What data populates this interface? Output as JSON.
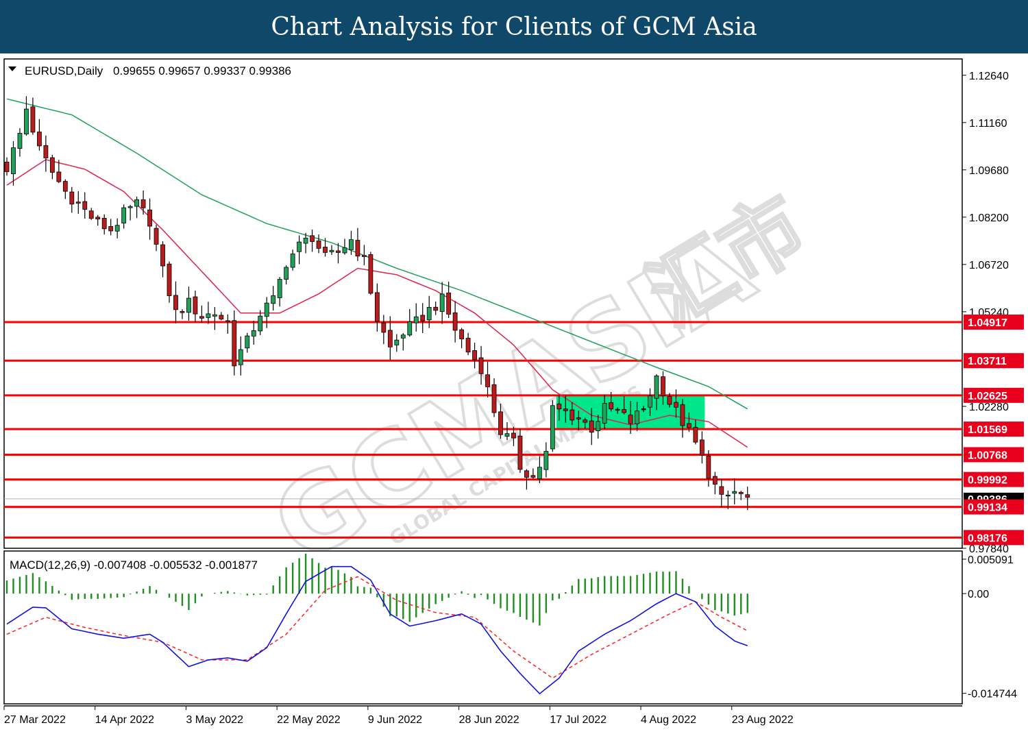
{
  "banner": {
    "title": "Chart Analysis for Clients of GCM Asia"
  },
  "header": {
    "symbol": "EURUSD,Daily",
    "ohlc": "0.99655 0.99657 0.99337 0.99386"
  },
  "watermark": {
    "text": "GCMASIA",
    "subtext": "GLOBAL CAPITAL MARKETS",
    "cjk": "汇市"
  },
  "colors": {
    "level": "#ff0000",
    "level_label": "#e8001c",
    "ma_fast": "#e0214d",
    "ma_slow": "#21a05a",
    "candle_up": "#21a05a",
    "candle_down": "#b81c1c",
    "consolidation": "#00e68a",
    "macd_line": "#1010e0",
    "signal_line": "#ff2020",
    "histogram": "#1e8f1e"
  },
  "chart_data": [
    {
      "type": "candlestick",
      "symbol": "EURUSD",
      "timeframe": "Daily",
      "ylim": [
        0.9784,
        1.1315
      ],
      "yticks": [
        "1.12640",
        "1.11160",
        "1.09680",
        "1.08200",
        "1.06720",
        "1.05240",
        "1.02280",
        "0.97840"
      ],
      "xticks": [
        "27 Mar 2022",
        "14 Apr 2022",
        "3 May 2022",
        "22 May 2022",
        "9 Jun 2022",
        "28 Jun 2022",
        "17 Jul 2022",
        "4 Aug 2022",
        "23 Aug 2022"
      ],
      "xtick_index": [
        0,
        14,
        28,
        42,
        56,
        70,
        84,
        98,
        112
      ],
      "last_price": 0.99386,
      "last_price_label": "0.99386",
      "levels": [
        {
          "value": 1.04917,
          "label": "1.04917"
        },
        {
          "value": 1.03711,
          "label": "1.03711"
        },
        {
          "value": 1.02625,
          "label": "1.02625"
        },
        {
          "value": 1.01569,
          "label": "1.01569"
        },
        {
          "value": 1.00768,
          "label": "1.00768"
        },
        {
          "value": 0.99992,
          "label": "0.99992"
        },
        {
          "value": 0.99134,
          "label": "0.99134"
        },
        {
          "value": 0.98176,
          "label": "0.98176"
        }
      ],
      "consolidation_zone": {
        "from_index": 85,
        "to_index": 107,
        "high": 1.02625,
        "low": 1.01569
      },
      "ma_fast_anchors": [
        [
          0,
          1.092
        ],
        [
          6,
          1.1
        ],
        [
          12,
          1.097
        ],
        [
          18,
          1.09
        ],
        [
          24,
          1.078
        ],
        [
          30,
          1.065
        ],
        [
          36,
          1.052
        ],
        [
          42,
          1.052
        ],
        [
          48,
          1.058
        ],
        [
          54,
          1.066
        ],
        [
          60,
          1.064
        ],
        [
          66,
          1.059
        ],
        [
          72,
          1.052
        ],
        [
          78,
          1.042
        ],
        [
          84,
          1.028
        ],
        [
          90,
          1.02
        ],
        [
          96,
          1.017
        ],
        [
          102,
          1.02
        ],
        [
          108,
          1.018
        ],
        [
          114,
          1.01
        ]
      ],
      "ma_slow_anchors": [
        [
          0,
          1.119
        ],
        [
          10,
          1.114
        ],
        [
          20,
          1.102
        ],
        [
          30,
          1.089
        ],
        [
          40,
          1.08
        ],
        [
          50,
          1.074
        ],
        [
          60,
          1.066
        ],
        [
          70,
          1.059
        ],
        [
          80,
          1.051
        ],
        [
          90,
          1.043
        ],
        [
          100,
          1.035
        ],
        [
          108,
          1.029
        ],
        [
          114,
          1.022
        ]
      ],
      "price_anchors": [
        [
          0,
          1.0975
        ],
        [
          2,
          1.108
        ],
        [
          3,
          1.116
        ],
        [
          5,
          1.103
        ],
        [
          7,
          1.096
        ],
        [
          9,
          1.09
        ],
        [
          12,
          1.084
        ],
        [
          14,
          1.08
        ],
        [
          16,
          1.078
        ],
        [
          18,
          1.083
        ],
        [
          20,
          1.086
        ],
        [
          22,
          1.081
        ],
        [
          24,
          1.065
        ],
        [
          26,
          1.052
        ],
        [
          28,
          1.055
        ],
        [
          30,
          1.051
        ],
        [
          32,
          1.052
        ],
        [
          34,
          1.049
        ],
        [
          35,
          1.037
        ],
        [
          37,
          1.043
        ],
        [
          39,
          1.052
        ],
        [
          41,
          1.056
        ],
        [
          43,
          1.068
        ],
        [
          45,
          1.073
        ],
        [
          47,
          1.076
        ],
        [
          49,
          1.069
        ],
        [
          51,
          1.071
        ],
        [
          53,
          1.075
        ],
        [
          55,
          1.068
        ],
        [
          57,
          1.05
        ],
        [
          59,
          1.041
        ],
        [
          61,
          1.046
        ],
        [
          63,
          1.049
        ],
        [
          65,
          1.053
        ],
        [
          67,
          1.056
        ],
        [
          69,
          1.047
        ],
        [
          71,
          1.04
        ],
        [
          73,
          1.035
        ],
        [
          74,
          1.028
        ],
        [
          76,
          1.015
        ],
        [
          78,
          1.011
        ],
        [
          79,
          1.004
        ],
        [
          81,
          1.0005
        ],
        [
          83,
          1.008
        ],
        [
          84,
          1.022
        ],
        [
          86,
          1.021
        ],
        [
          88,
          1.019
        ],
        [
          90,
          1.016
        ],
        [
          92,
          1.022
        ],
        [
          94,
          1.021
        ],
        [
          96,
          1.018
        ],
        [
          98,
          1.022
        ],
        [
          100,
          1.032
        ],
        [
          102,
          1.024
        ],
        [
          104,
          1.018
        ],
        [
          106,
          1.011
        ],
        [
          108,
          1.002
        ],
        [
          110,
          0.9935
        ],
        [
          112,
          0.996
        ],
        [
          114,
          0.99386
        ]
      ]
    },
    {
      "type": "macd",
      "title": "MACD(12,26,9) -0.007408 -0.005532 -0.001877",
      "ylim": [
        -0.0163,
        0.0063
      ],
      "yticks": [
        "0.005091",
        "0.00",
        "-0.014744"
      ],
      "macd_anchors": [
        [
          0,
          -0.0045
        ],
        [
          4,
          -0.002
        ],
        [
          6,
          -0.0021
        ],
        [
          10,
          -0.0052
        ],
        [
          14,
          -0.006
        ],
        [
          18,
          -0.0066
        ],
        [
          22,
          -0.006
        ],
        [
          24,
          -0.0072
        ],
        [
          28,
          -0.0108
        ],
        [
          31,
          -0.0098
        ],
        [
          34,
          -0.0095
        ],
        [
          37,
          -0.01
        ],
        [
          40,
          -0.008
        ],
        [
          43,
          -0.003
        ],
        [
          46,
          0.0018
        ],
        [
          50,
          0.004
        ],
        [
          53,
          0.004
        ],
        [
          56,
          0.002
        ],
        [
          59,
          -0.003
        ],
        [
          62,
          -0.0048
        ],
        [
          66,
          -0.004
        ],
        [
          70,
          -0.003
        ],
        [
          73,
          -0.0045
        ],
        [
          76,
          -0.0085
        ],
        [
          79,
          -0.0118
        ],
        [
          82,
          -0.0148
        ],
        [
          85,
          -0.0125
        ],
        [
          88,
          -0.0085
        ],
        [
          92,
          -0.006
        ],
        [
          96,
          -0.004
        ],
        [
          100,
          -0.0015
        ],
        [
          103,
          0.0
        ],
        [
          106,
          -0.0012
        ],
        [
          109,
          -0.0048
        ],
        [
          112,
          -0.007
        ],
        [
          114,
          -0.0077
        ]
      ],
      "signal_anchors": [
        [
          0,
          -0.006
        ],
        [
          6,
          -0.0035
        ],
        [
          12,
          -0.005
        ],
        [
          18,
          -0.0062
        ],
        [
          24,
          -0.0072
        ],
        [
          30,
          -0.0098
        ],
        [
          37,
          -0.0098
        ],
        [
          43,
          -0.006
        ],
        [
          49,
          0.0005
        ],
        [
          54,
          0.0025
        ],
        [
          60,
          -0.001
        ],
        [
          66,
          -0.0028
        ],
        [
          72,
          -0.0035
        ],
        [
          78,
          -0.0085
        ],
        [
          84,
          -0.0125
        ],
        [
          90,
          -0.009
        ],
        [
          96,
          -0.006
        ],
        [
          102,
          -0.003
        ],
        [
          106,
          -0.0012
        ],
        [
          110,
          -0.0035
        ],
        [
          114,
          -0.0055
        ]
      ]
    }
  ]
}
